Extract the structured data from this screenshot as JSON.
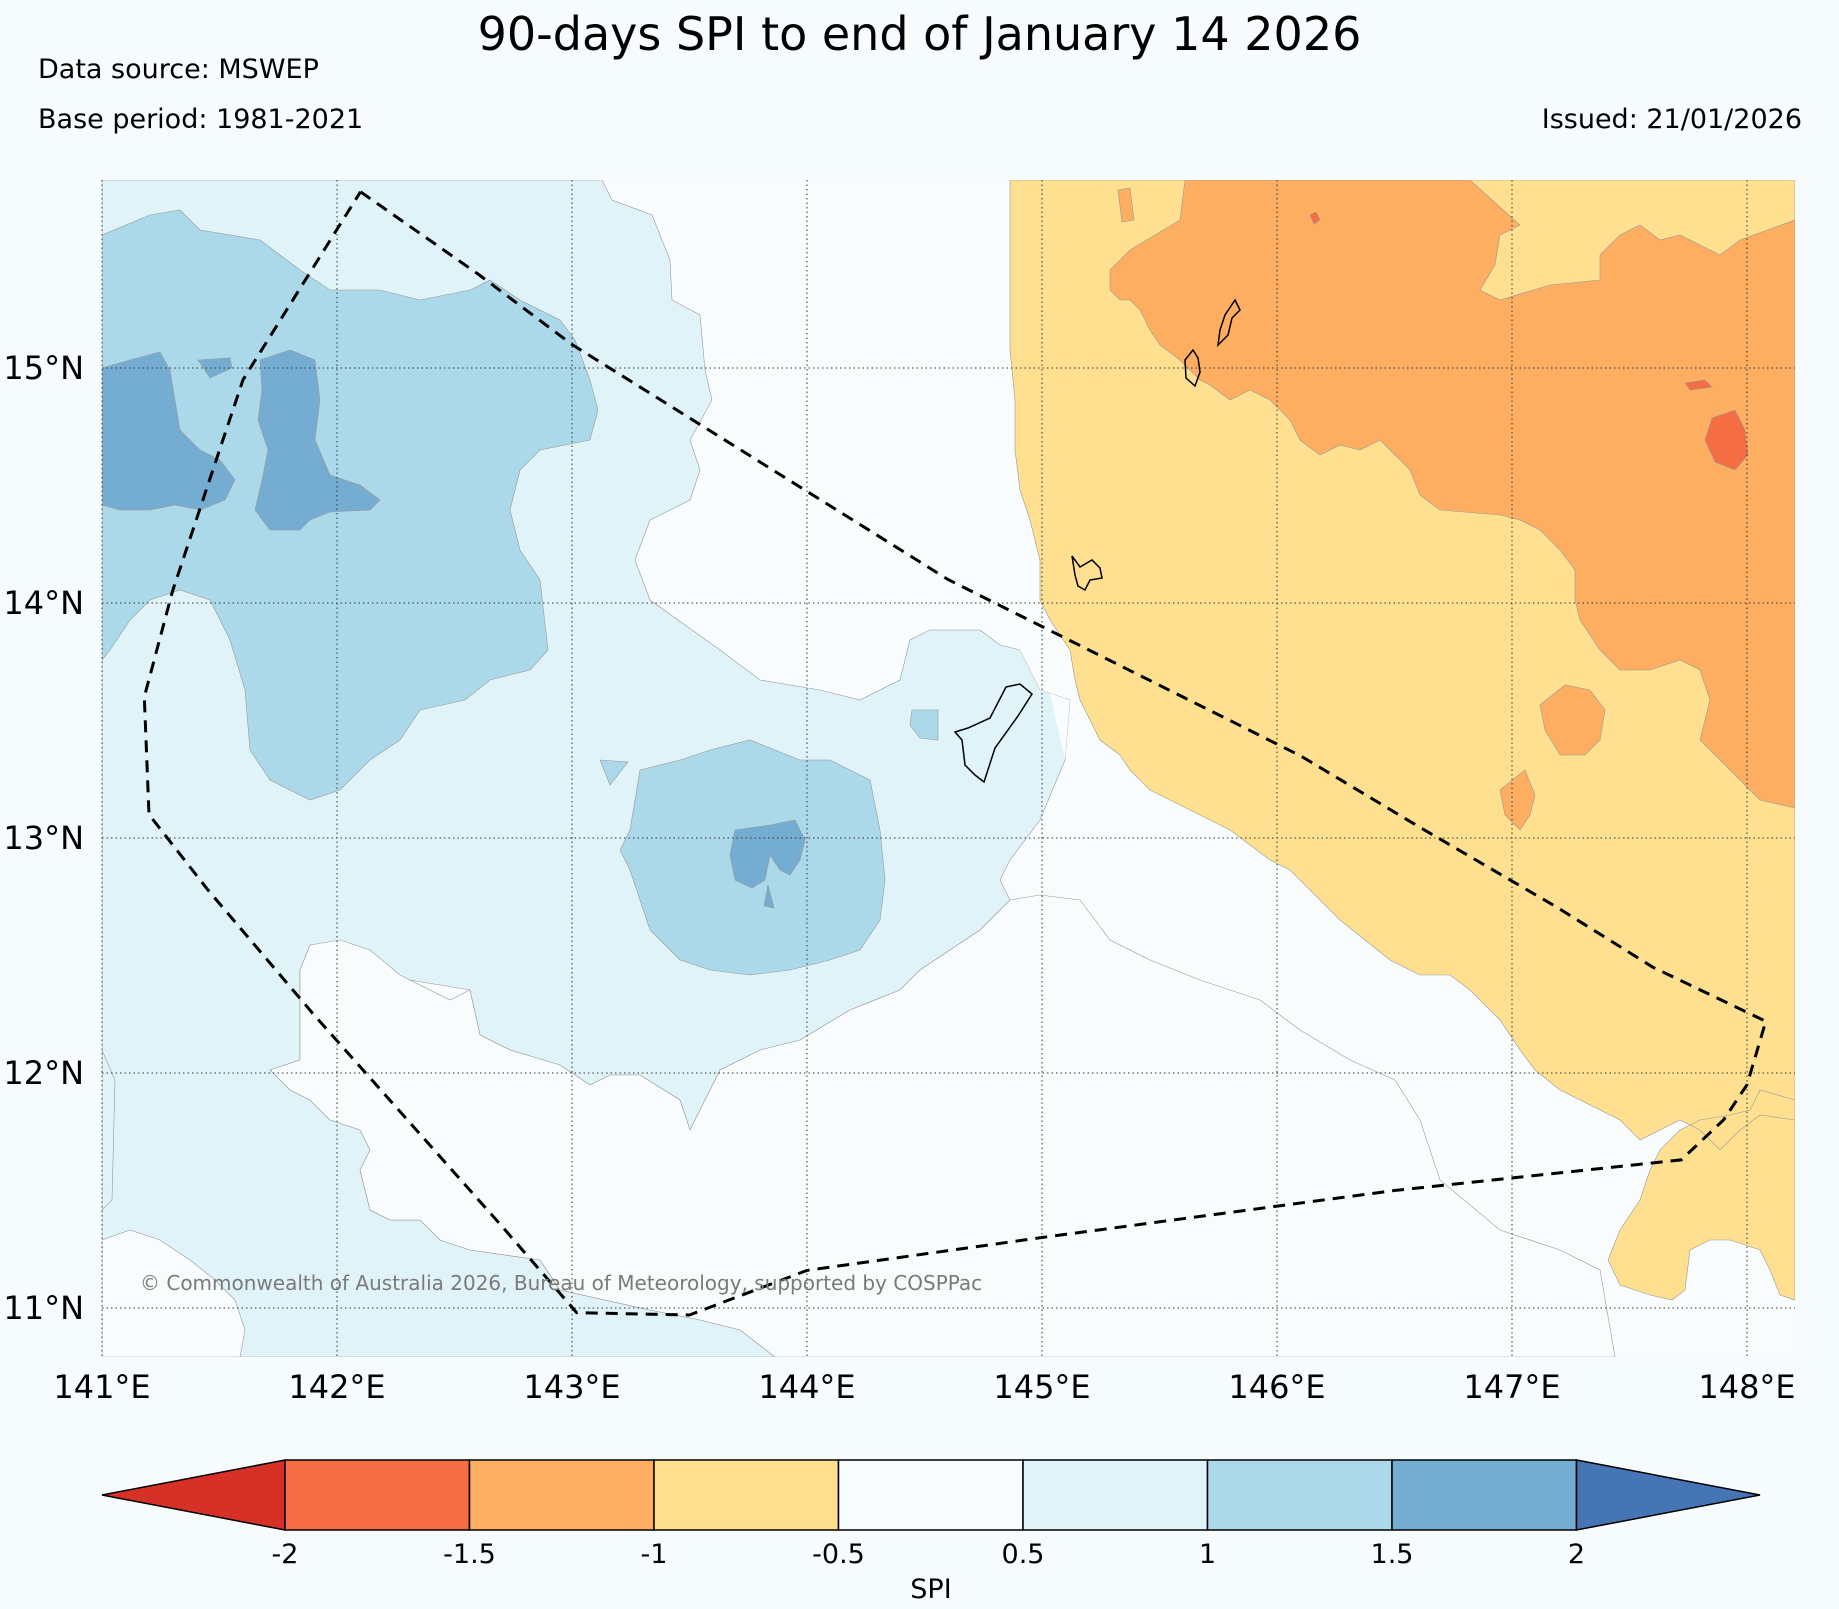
{
  "title": "90-days SPI to end of January 14 2026",
  "data_source": "Data source: MSWEP",
  "base_period": "Base period: 1981-2021",
  "issued": "Issued: 21/01/2026",
  "credit": "© Commonwealth of Australia 2026, Bureau of Meteorology, supported by COSPPac",
  "map": {
    "lon_range": [
      141,
      148.2
    ],
    "lat_range": [
      10.8,
      15.8
    ],
    "lon_ticks": [
      {
        "value": 141,
        "label": "141°E"
      },
      {
        "value": 142,
        "label": "142°E"
      },
      {
        "value": 143,
        "label": "143°E"
      },
      {
        "value": 144,
        "label": "144°E"
      },
      {
        "value": 145,
        "label": "145°E"
      },
      {
        "value": 146,
        "label": "146°E"
      },
      {
        "value": 147,
        "label": "147°E"
      },
      {
        "value": 148,
        "label": "148°E"
      }
    ],
    "lat_ticks": [
      {
        "value": 15,
        "label": "15°N"
      },
      {
        "value": 14,
        "label": "14°N"
      },
      {
        "value": 13,
        "label": "13°N"
      },
      {
        "value": 12,
        "label": "12°N"
      },
      {
        "value": 11,
        "label": "11°N"
      }
    ],
    "boundary_lonlat": [
      [
        142.1,
        15.75
      ],
      [
        142.6,
        15.4
      ],
      [
        143.0,
        15.1
      ],
      [
        143.8,
        14.6
      ],
      [
        144.6,
        14.1
      ],
      [
        145.1,
        13.85
      ],
      [
        145.6,
        13.6
      ],
      [
        146.1,
        13.35
      ],
      [
        146.6,
        13.05
      ],
      [
        147.2,
        12.7
      ],
      [
        147.6,
        12.45
      ],
      [
        148.08,
        12.22
      ],
      [
        148.0,
        11.95
      ],
      [
        147.9,
        11.8
      ],
      [
        147.72,
        11.63
      ],
      [
        146.5,
        11.5
      ],
      [
        145.0,
        11.3
      ],
      [
        144.0,
        11.16
      ],
      [
        143.5,
        10.97
      ],
      [
        143.02,
        10.98
      ],
      [
        142.7,
        11.35
      ],
      [
        142.3,
        11.8
      ],
      [
        141.9,
        12.25
      ],
      [
        141.45,
        12.78
      ],
      [
        141.2,
        13.1
      ],
      [
        141.18,
        13.6
      ],
      [
        141.3,
        14.05
      ],
      [
        141.45,
        14.5
      ],
      [
        141.6,
        14.95
      ],
      [
        141.85,
        15.35
      ],
      [
        142.1,
        15.75
      ]
    ]
  },
  "legend": {
    "label": "SPI",
    "colors": [
      "#d73027",
      "#f46d43",
      "#fdae61",
      "#fee090",
      "#f8fcfd",
      "#e0f3f8",
      "#abd9e9",
      "#74add1",
      "#4575b4"
    ],
    "ticks": [
      "-2",
      "-1.5",
      "-1",
      "-0.5",
      "0.5",
      "1",
      "1.5",
      "2"
    ]
  }
}
